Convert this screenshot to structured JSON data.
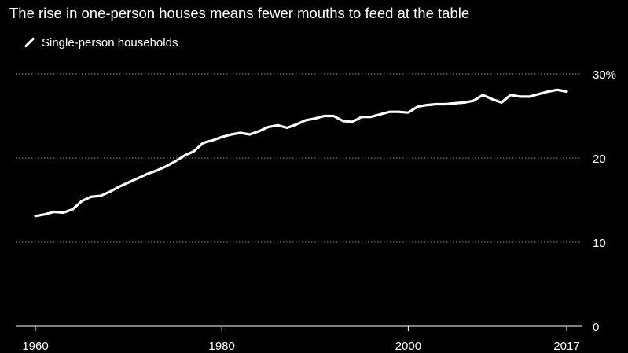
{
  "chart_data": {
    "type": "line",
    "title": "The rise in one-person houses means fewer mouths to feed at the table",
    "series": [
      {
        "name": "Single-person households",
        "x": [
          1960,
          1961,
          1962,
          1963,
          1964,
          1965,
          1966,
          1967,
          1968,
          1969,
          1970,
          1971,
          1972,
          1973,
          1974,
          1975,
          1976,
          1977,
          1978,
          1979,
          1980,
          1981,
          1982,
          1983,
          1984,
          1985,
          1986,
          1987,
          1988,
          1989,
          1990,
          1991,
          1992,
          1993,
          1994,
          1995,
          1996,
          1997,
          1998,
          1999,
          2000,
          2001,
          2002,
          2003,
          2004,
          2005,
          2006,
          2007,
          2008,
          2009,
          2010,
          2011,
          2012,
          2013,
          2014,
          2015,
          2016,
          2017
        ],
        "values": [
          13.1,
          13.3,
          13.6,
          13.5,
          13.9,
          14.9,
          15.4,
          15.5,
          16.0,
          16.6,
          17.1,
          17.6,
          18.1,
          18.5,
          19.0,
          19.6,
          20.3,
          20.8,
          21.8,
          22.1,
          22.5,
          22.8,
          23.0,
          22.8,
          23.2,
          23.7,
          23.9,
          23.6,
          24.0,
          24.5,
          24.7,
          25.0,
          25.0,
          24.4,
          24.3,
          24.9,
          24.9,
          25.2,
          25.5,
          25.5,
          25.4,
          26.1,
          26.3,
          26.4,
          26.4,
          26.5,
          26.6,
          26.8,
          27.5,
          27.0,
          26.6,
          27.5,
          27.3,
          27.3,
          27.6,
          27.9,
          28.1,
          27.9
        ]
      }
    ],
    "y_ticks": [
      {
        "value": 0,
        "label": "0"
      },
      {
        "value": 10,
        "label": "10"
      },
      {
        "value": 20,
        "label": "20"
      },
      {
        "value": 30,
        "label": "30%"
      }
    ],
    "x_ticks": [
      {
        "value": 1960,
        "label": "1960"
      },
      {
        "value": 1980,
        "label": "1980"
      },
      {
        "value": 2000,
        "label": "2000"
      },
      {
        "value": 2017,
        "label": "2017"
      }
    ],
    "xlim": [
      1960,
      2017
    ],
    "ylim": [
      0,
      30
    ],
    "grid": true,
    "legend": "top-left",
    "colors": {
      "background": "#000000",
      "line": "#ffffff",
      "grid": "#8a8a8a",
      "text": "#ffffff"
    }
  }
}
